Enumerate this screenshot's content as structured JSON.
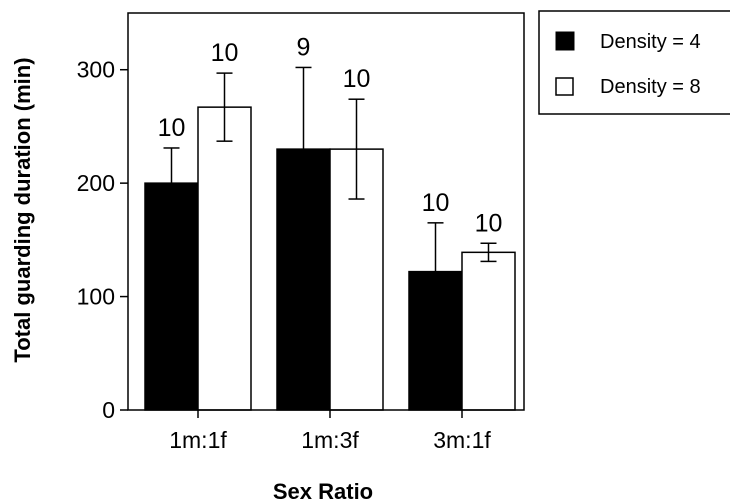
{
  "chart_data": {
    "type": "bar",
    "title": "",
    "xlabel": "Sex Ratio",
    "ylabel": "Total guarding duration (min)",
    "categories": [
      "1m:1f",
      "1m:3f",
      "3m:1f"
    ],
    "ylim": [
      0,
      350
    ],
    "yticks": [
      0,
      100,
      200,
      300
    ],
    "grid": false,
    "legend_position": "top-right",
    "series": [
      {
        "name": "Density = 4",
        "fill": "#000000",
        "values": [
          200,
          230,
          122
        ],
        "error": [
          31,
          72,
          43
        ],
        "n_labels": [
          "10",
          "9",
          "10"
        ]
      },
      {
        "name": "Density = 8",
        "fill": "#ffffff",
        "values": [
          267,
          230,
          139
        ],
        "error": [
          30,
          44,
          8
        ],
        "n_labels": [
          "10",
          "10",
          "10"
        ]
      }
    ]
  }
}
